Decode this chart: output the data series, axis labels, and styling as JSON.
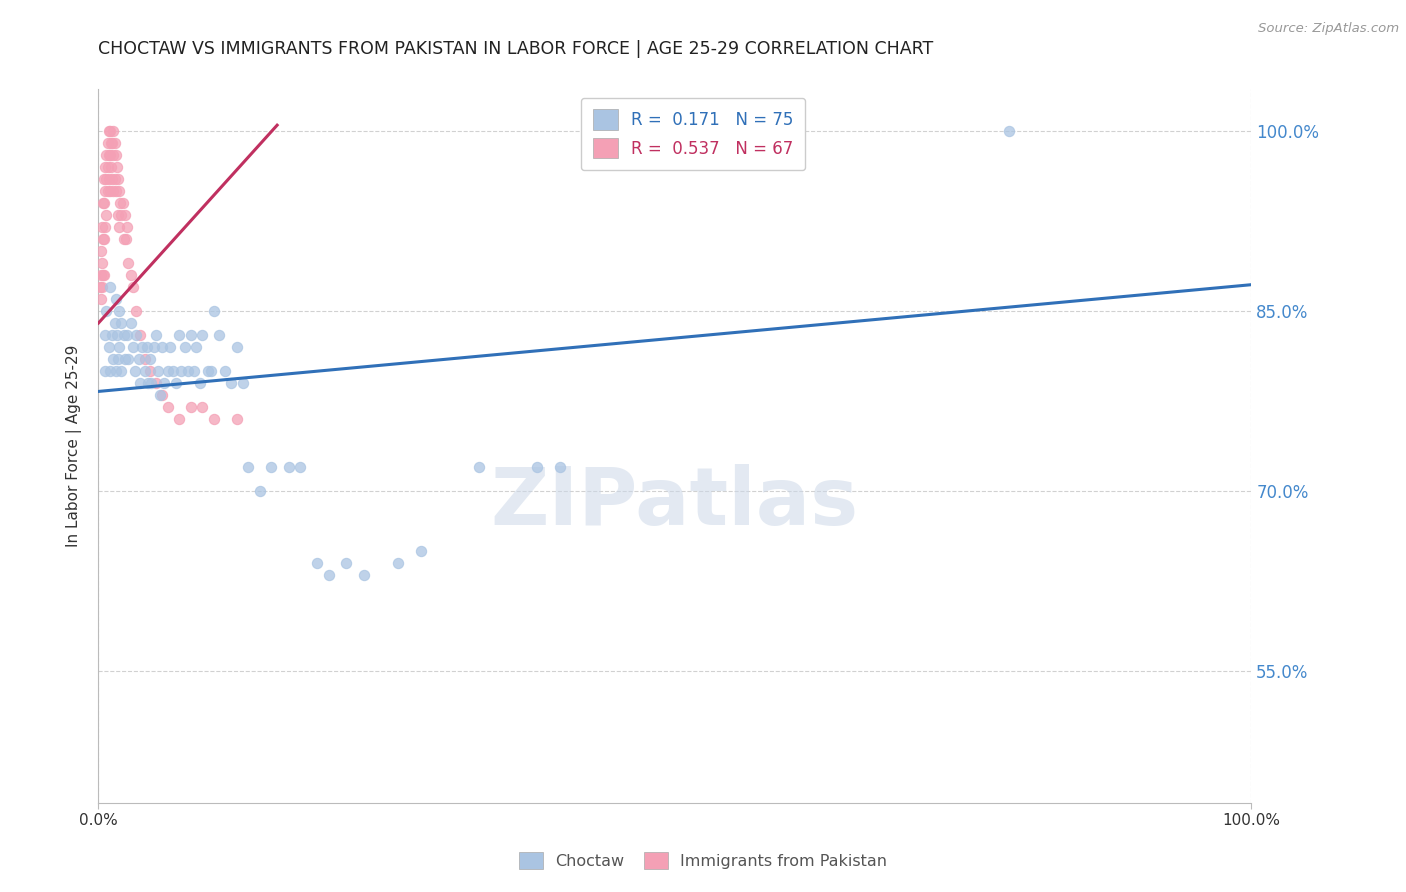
{
  "title": "CHOCTAW VS IMMIGRANTS FROM PAKISTAN IN LABOR FORCE | AGE 25-29 CORRELATION CHART",
  "source": "Source: ZipAtlas.com",
  "ylabel": "In Labor Force | Age 25-29",
  "xlim": [
    0.0,
    1.0
  ],
  "ylim": [
    0.44,
    1.035
  ],
  "yticks": [
    0.55,
    0.7,
    0.85,
    1.0
  ],
  "ytick_labels": [
    "55.0%",
    "70.0%",
    "85.0%",
    "100.0%"
  ],
  "xticks": [
    0.0,
    1.0
  ],
  "xtick_labels": [
    "0.0%",
    "100.0%"
  ],
  "legend_entries": [
    {
      "label": "R =  0.171   N = 75",
      "color": "#aac4e2"
    },
    {
      "label": "R =  0.537   N = 67",
      "color": "#f4a0b5"
    }
  ],
  "watermark": "ZIPatlas",
  "blue_line_x": [
    0.0,
    1.0
  ],
  "blue_line_y": [
    0.783,
    0.872
  ],
  "pink_line_x": [
    0.0,
    0.155
  ],
  "pink_line_y": [
    0.84,
    1.005
  ],
  "choctaw_x": [
    0.006,
    0.006,
    0.007,
    0.009,
    0.01,
    0.01,
    0.012,
    0.013,
    0.014,
    0.015,
    0.015,
    0.016,
    0.017,
    0.018,
    0.018,
    0.02,
    0.02,
    0.022,
    0.023,
    0.025,
    0.026,
    0.028,
    0.03,
    0.032,
    0.033,
    0.035,
    0.036,
    0.038,
    0.04,
    0.042,
    0.043,
    0.045,
    0.046,
    0.048,
    0.05,
    0.052,
    0.053,
    0.055,
    0.057,
    0.06,
    0.062,
    0.065,
    0.067,
    0.07,
    0.072,
    0.075,
    0.078,
    0.08,
    0.083,
    0.085,
    0.088,
    0.09,
    0.095,
    0.098,
    0.1,
    0.105,
    0.11,
    0.115,
    0.12,
    0.125,
    0.13,
    0.14,
    0.15,
    0.165,
    0.175,
    0.19,
    0.2,
    0.215,
    0.23,
    0.26,
    0.28,
    0.33,
    0.38,
    0.4,
    0.79
  ],
  "choctaw_y": [
    0.83,
    0.8,
    0.85,
    0.82,
    0.87,
    0.8,
    0.83,
    0.81,
    0.84,
    0.86,
    0.8,
    0.83,
    0.81,
    0.85,
    0.82,
    0.84,
    0.8,
    0.83,
    0.81,
    0.83,
    0.81,
    0.84,
    0.82,
    0.8,
    0.83,
    0.81,
    0.79,
    0.82,
    0.8,
    0.82,
    0.79,
    0.81,
    0.79,
    0.82,
    0.83,
    0.8,
    0.78,
    0.82,
    0.79,
    0.8,
    0.82,
    0.8,
    0.79,
    0.83,
    0.8,
    0.82,
    0.8,
    0.83,
    0.8,
    0.82,
    0.79,
    0.83,
    0.8,
    0.8,
    0.85,
    0.83,
    0.8,
    0.79,
    0.82,
    0.79,
    0.72,
    0.7,
    0.72,
    0.72,
    0.72,
    0.64,
    0.63,
    0.64,
    0.63,
    0.64,
    0.65,
    0.72,
    0.72,
    0.72,
    1.0
  ],
  "pakistan_x": [
    0.001,
    0.002,
    0.002,
    0.002,
    0.003,
    0.003,
    0.003,
    0.004,
    0.004,
    0.004,
    0.005,
    0.005,
    0.005,
    0.005,
    0.006,
    0.006,
    0.006,
    0.007,
    0.007,
    0.007,
    0.008,
    0.008,
    0.008,
    0.009,
    0.009,
    0.009,
    0.01,
    0.01,
    0.01,
    0.011,
    0.011,
    0.012,
    0.012,
    0.013,
    0.013,
    0.013,
    0.014,
    0.014,
    0.015,
    0.015,
    0.016,
    0.017,
    0.017,
    0.018,
    0.018,
    0.019,
    0.02,
    0.021,
    0.022,
    0.023,
    0.024,
    0.025,
    0.026,
    0.028,
    0.03,
    0.033,
    0.036,
    0.04,
    0.045,
    0.05,
    0.055,
    0.06,
    0.07,
    0.08,
    0.09,
    0.1,
    0.12
  ],
  "pakistan_y": [
    0.87,
    0.9,
    0.88,
    0.86,
    0.92,
    0.89,
    0.87,
    0.94,
    0.91,
    0.88,
    0.96,
    0.94,
    0.91,
    0.88,
    0.97,
    0.95,
    0.92,
    0.98,
    0.96,
    0.93,
    0.99,
    0.97,
    0.95,
    1.0,
    0.98,
    0.96,
    1.0,
    0.98,
    0.95,
    0.99,
    0.97,
    0.99,
    0.96,
    1.0,
    0.98,
    0.95,
    0.99,
    0.96,
    0.98,
    0.95,
    0.97,
    0.96,
    0.93,
    0.95,
    0.92,
    0.94,
    0.93,
    0.94,
    0.91,
    0.93,
    0.91,
    0.92,
    0.89,
    0.88,
    0.87,
    0.85,
    0.83,
    0.81,
    0.8,
    0.79,
    0.78,
    0.77,
    0.76,
    0.77,
    0.77,
    0.76,
    0.76
  ],
  "dot_size": 55,
  "blue_color": "#aac4e2",
  "pink_color": "#f4a0b5",
  "blue_line_color": "#3070b8",
  "pink_line_color": "#c03060",
  "background_color": "#ffffff",
  "grid_color": "#cccccc"
}
